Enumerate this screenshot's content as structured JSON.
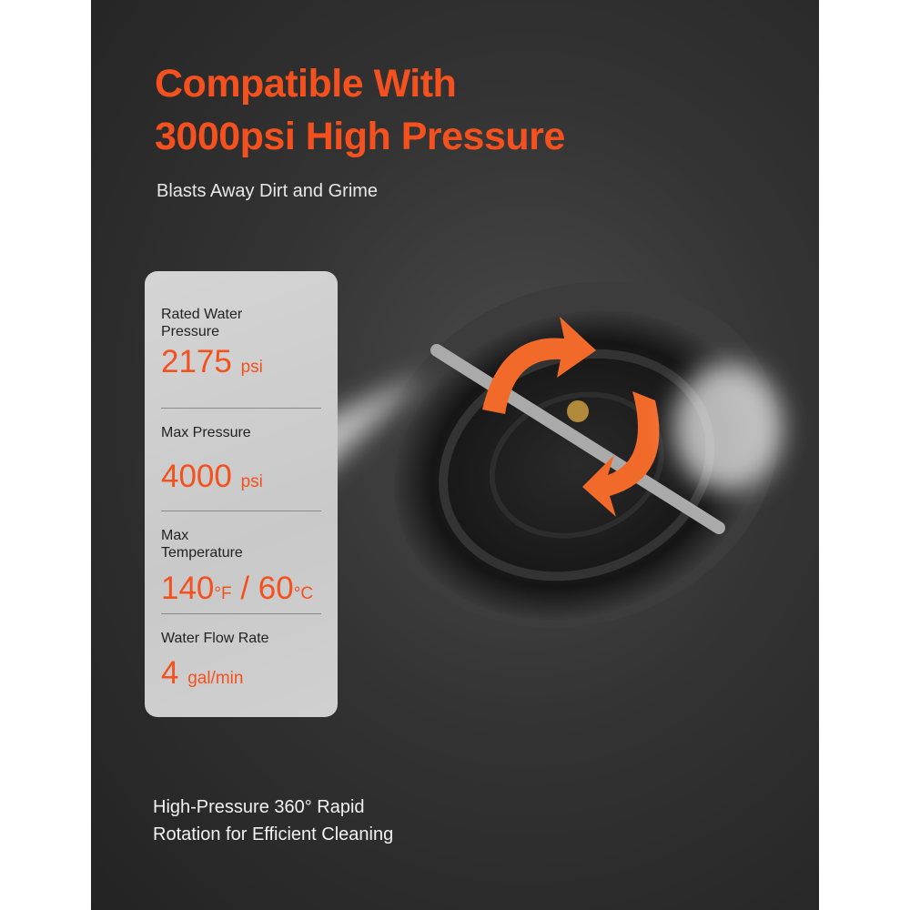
{
  "heading": {
    "line1": "Compatible With",
    "line2": "3000psi High Pressure",
    "subtitle": "Blasts Away Dirt and Grime"
  },
  "specs": [
    {
      "label": "Rated Water Pressure",
      "value": "2175",
      "unit": "psi"
    },
    {
      "label": "Max Pressure",
      "value": "4000",
      "unit": "psi"
    },
    {
      "label": "Max Temperature",
      "value": "140",
      "unit": "°F",
      "value2": " / 60",
      "unit2": "°C"
    },
    {
      "label": "Water Flow Rate",
      "value": "4",
      "unit": "gal/min"
    }
  ],
  "caption": {
    "line1": "High-Pressure 360° Rapid",
    "line2": "Rotation for Efficient Cleaning"
  },
  "colors": {
    "accent": "#f4511e",
    "background": "#2e2e2e",
    "card": "#cfcfcf"
  }
}
